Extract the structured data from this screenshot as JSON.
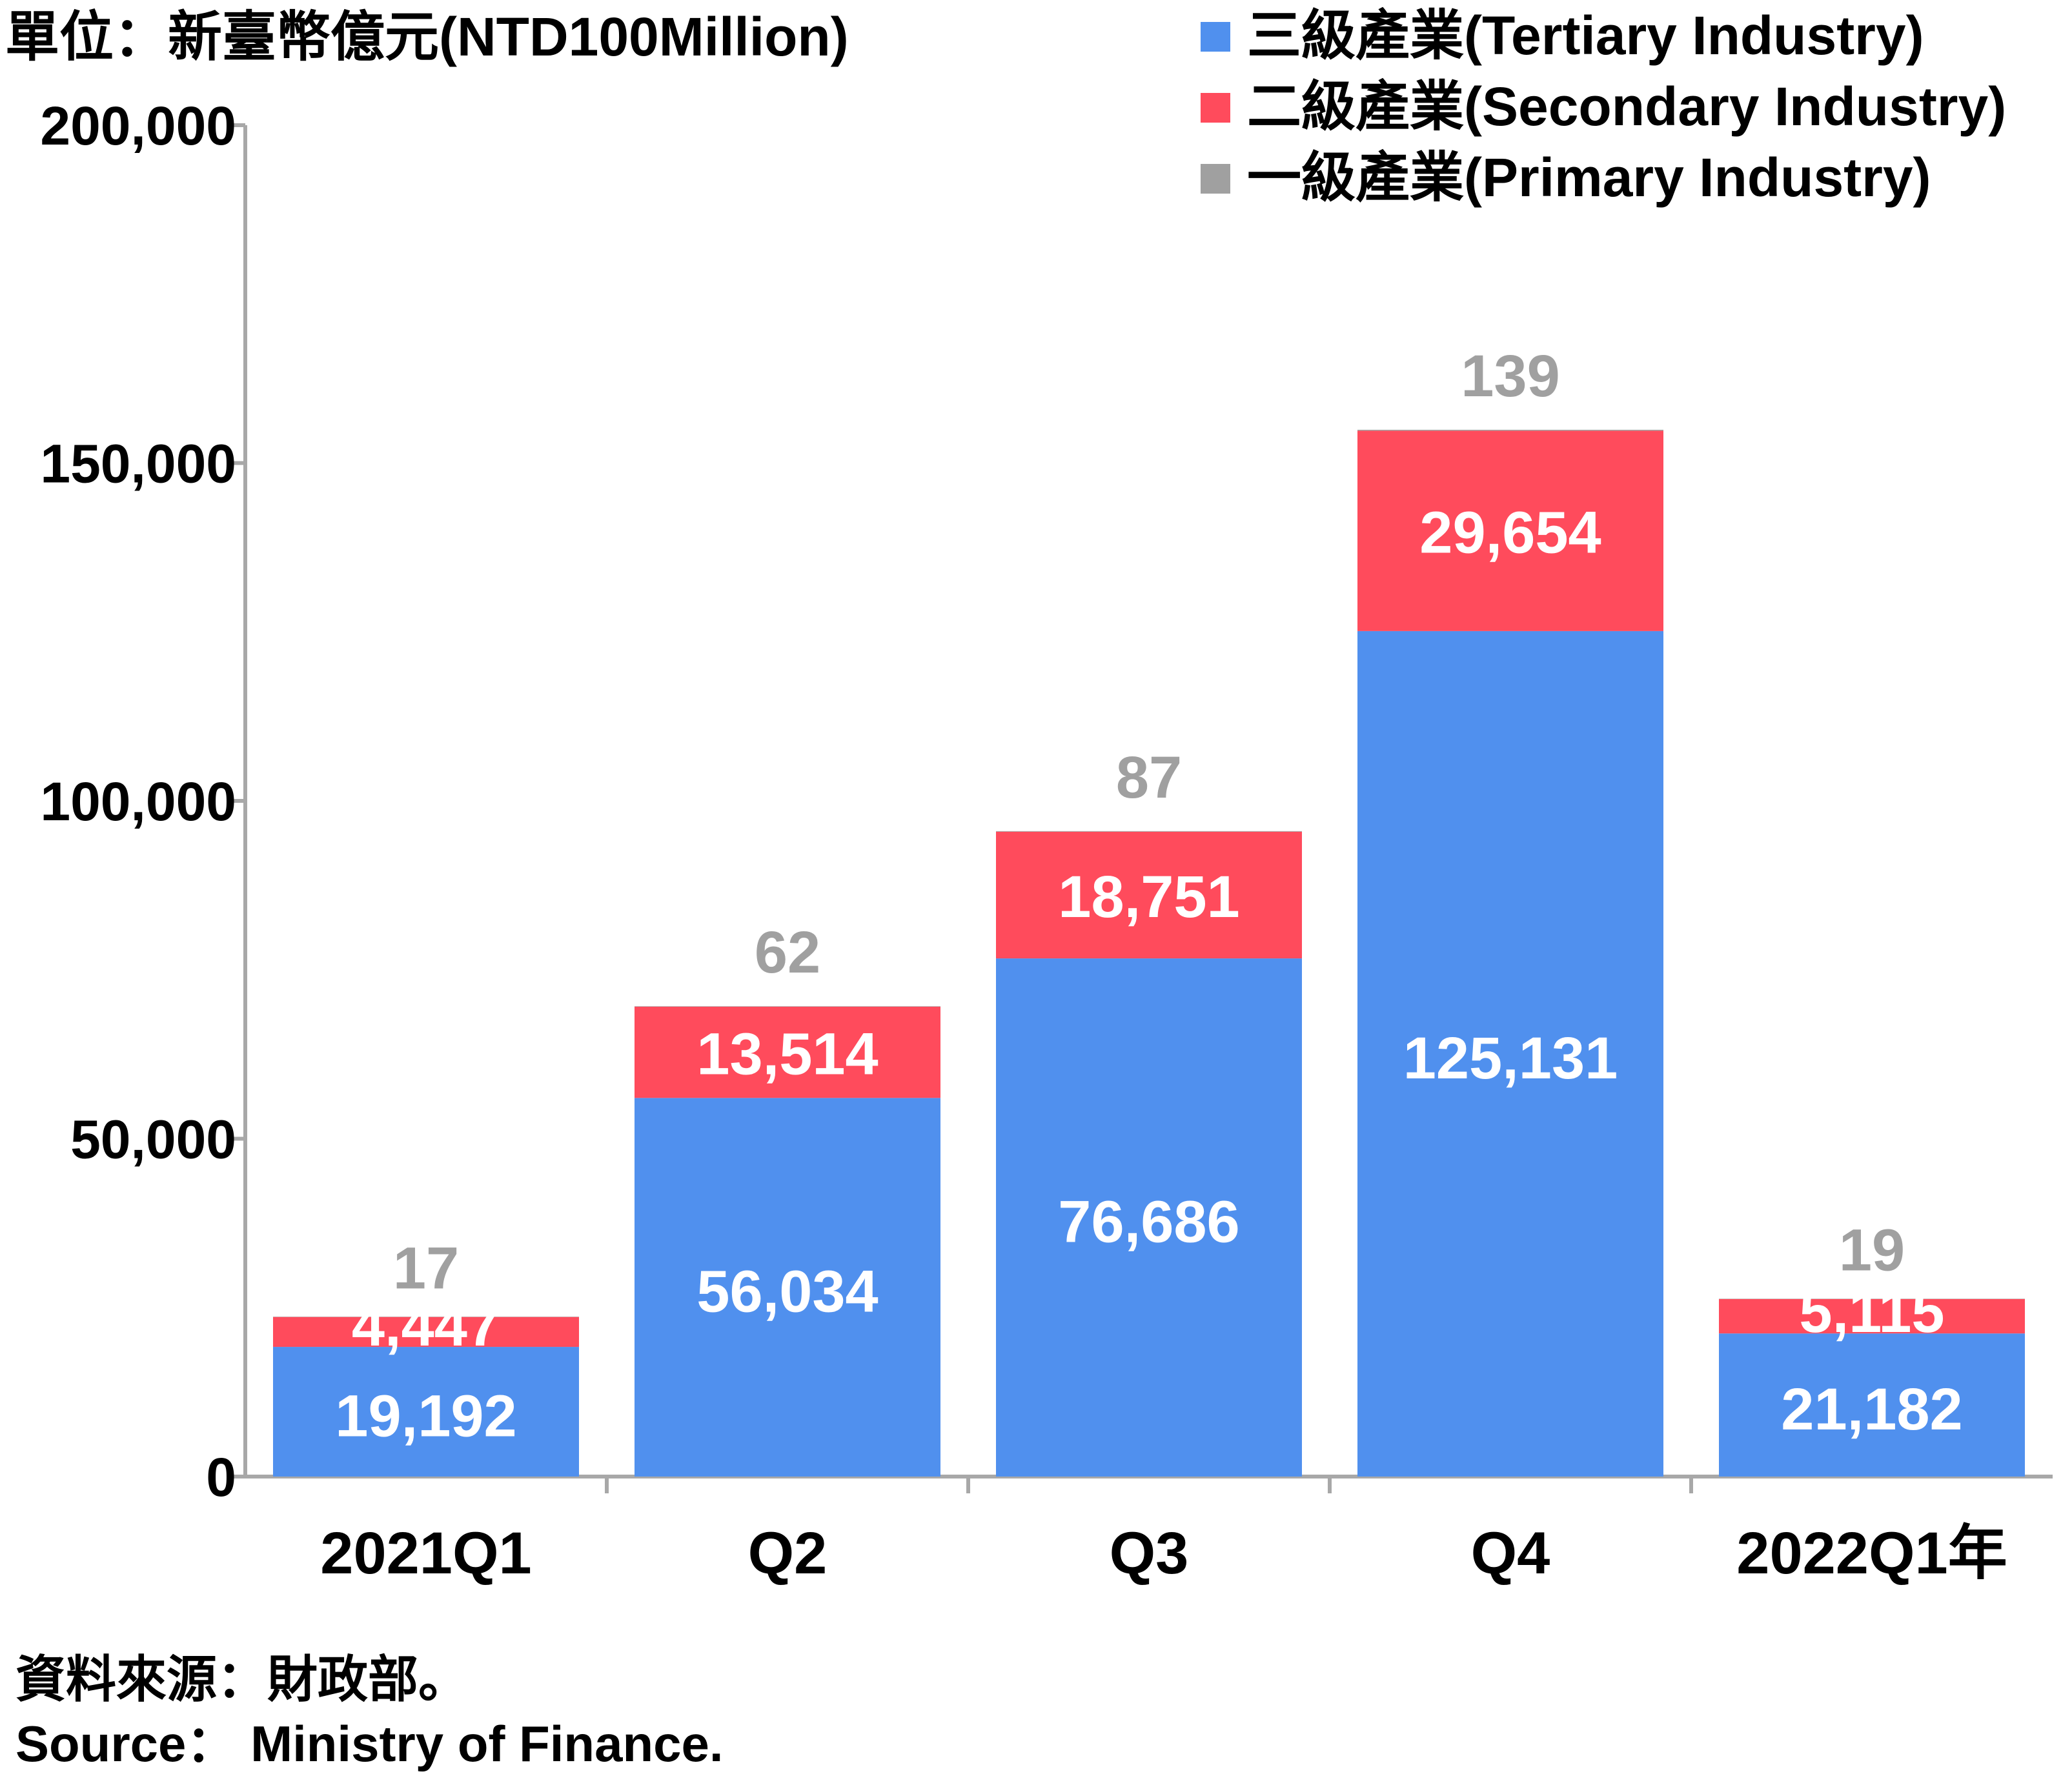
{
  "chart_data": {
    "type": "bar",
    "stacked": true,
    "unit_label": "單位：新臺幣億元(NTD100Million)",
    "categories": [
      "2021Q1",
      "Q2",
      "Q3",
      "Q4",
      "2022Q1年"
    ],
    "ylim": [
      0,
      200000
    ],
    "yticks": [
      0,
      50000,
      100000,
      150000,
      200000
    ],
    "ytick_labels": [
      "0",
      "50,000",
      "100,000",
      "150,000",
      "200,000"
    ],
    "grid": false,
    "legend_position": "top-right",
    "series": [
      {
        "name": "三級產業(Tertiary Industry)",
        "color": "#5090ee",
        "values": [
          19192,
          56034,
          76686,
          125131,
          21182
        ],
        "labels": [
          "19,192",
          "56,034",
          "76,686",
          "125,131",
          "21,182"
        ]
      },
      {
        "name": "二級產業(Secondary Industry)",
        "color": "#ff4b5c",
        "values": [
          4447,
          13514,
          18751,
          29654,
          5115
        ],
        "labels": [
          "4,447",
          "13,514",
          "18,751",
          "29,654",
          "5,115"
        ]
      },
      {
        "name": "一級產業(Primary Industry)",
        "color": "#a0a0a0",
        "values": [
          17,
          62,
          87,
          139,
          19
        ],
        "labels": [
          "17",
          "62",
          "87",
          "139",
          "19"
        ]
      }
    ]
  },
  "source": {
    "zh": "資料來源：財政部。",
    "en": "Source： Ministry of Finance."
  }
}
